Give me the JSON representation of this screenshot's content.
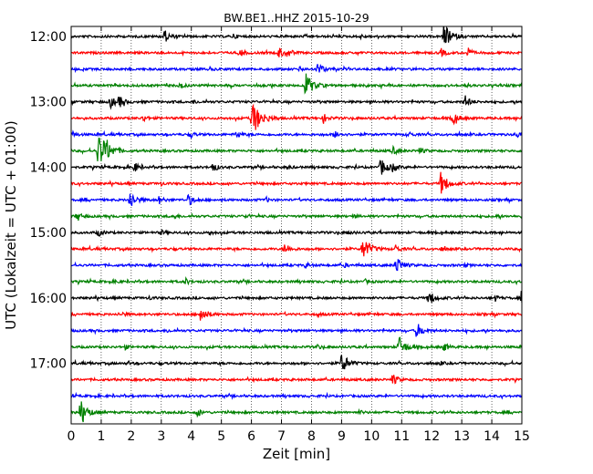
{
  "chart_data": {
    "type": "line",
    "title": "BW.BE1..HHZ 2015-10-29",
    "xlabel": "Zeit  [min]",
    "ylabel": "UTC (Lokalzeit = UTC + 01:00)",
    "xlim": [
      0,
      15
    ],
    "x_ticks": [
      "0",
      "1",
      "2",
      "3",
      "4",
      "5",
      "6",
      "7",
      "8",
      "9",
      "10",
      "11",
      "12",
      "13",
      "14",
      "15"
    ],
    "y_ticks": [
      {
        "label": "12:00",
        "row": 0
      },
      {
        "label": "13:00",
        "row": 4
      },
      {
        "label": "14:00",
        "row": 8
      },
      {
        "label": "15:00",
        "row": 12
      },
      {
        "label": "16:00",
        "row": 16
      },
      {
        "label": "17:00",
        "row": 20
      }
    ],
    "row_interval_min": 15,
    "row_colors": [
      "#000000",
      "#ff0000",
      "#0000ff",
      "#008000"
    ],
    "grid": "vertical-dotted",
    "series": [
      {
        "start": "12:00",
        "events": [
          [
            3.1,
            0.5
          ],
          [
            5.4,
            0.2
          ],
          [
            12.4,
            1.0
          ],
          [
            9.6,
            0.15
          ]
        ]
      },
      {
        "start": "12:15",
        "events": [
          [
            5.6,
            0.35
          ],
          [
            6.9,
            0.45
          ],
          [
            7.2,
            0.35
          ],
          [
            12.3,
            0.35
          ],
          [
            13.2,
            0.35
          ]
        ]
      },
      {
        "start": "12:30",
        "events": [
          [
            8.2,
            0.55
          ],
          [
            4.6,
            0.12
          ],
          [
            7.6,
            0.15
          ]
        ]
      },
      {
        "start": "12:45",
        "events": [
          [
            7.8,
            1.0
          ],
          [
            3.6,
            0.25
          ],
          [
            13.1,
            0.2
          ]
        ]
      },
      {
        "start": "13:00",
        "events": [
          [
            1.3,
            0.5
          ],
          [
            1.6,
            0.45
          ],
          [
            4.1,
            0.15
          ],
          [
            13.1,
            0.5
          ]
        ]
      },
      {
        "start": "13:15",
        "events": [
          [
            6.0,
            1.5
          ],
          [
            8.4,
            0.35
          ],
          [
            12.7,
            0.55
          ],
          [
            2.4,
            0.25
          ]
        ]
      },
      {
        "start": "13:30",
        "events": [
          [
            0.0,
            0.3
          ],
          [
            4.0,
            0.2
          ],
          [
            5.5,
            0.3
          ],
          [
            8.8,
            0.3
          ],
          [
            11.2,
            0.25
          ],
          [
            14.8,
            0.3
          ]
        ]
      },
      {
        "start": "13:45",
        "events": [
          [
            0.9,
            1.5
          ],
          [
            1.2,
            0.35
          ],
          [
            10.7,
            0.35
          ],
          [
            11.6,
            0.25
          ]
        ]
      },
      {
        "start": "14:00",
        "events": [
          [
            2.1,
            0.4
          ],
          [
            4.7,
            0.4
          ],
          [
            10.3,
            0.75
          ],
          [
            10.7,
            0.3
          ],
          [
            7.2,
            0.15
          ]
        ]
      },
      {
        "start": "14:15",
        "events": [
          [
            12.3,
            0.9
          ],
          [
            3.0,
            0.12
          ]
        ]
      },
      {
        "start": "14:30",
        "events": [
          [
            1.95,
            0.75
          ],
          [
            2.9,
            0.35
          ],
          [
            3.9,
            0.45
          ],
          [
            6.5,
            0.15
          ]
        ]
      },
      {
        "start": "14:45",
        "events": [
          [
            0.2,
            0.3
          ],
          [
            3.4,
            0.2
          ],
          [
            5.8,
            0.15
          ],
          [
            9.4,
            0.15
          ],
          [
            14.1,
            0.15
          ]
        ]
      },
      {
        "start": "15:00",
        "events": [
          [
            0.9,
            0.3
          ],
          [
            3.0,
            0.2
          ],
          [
            4.6,
            0.15
          ],
          [
            9.2,
            0.15
          ]
        ]
      },
      {
        "start": "15:15",
        "events": [
          [
            7.1,
            0.5
          ],
          [
            9.7,
            1.0
          ],
          [
            10.8,
            0.3
          ],
          [
            12.3,
            0.2
          ]
        ]
      },
      {
        "start": "15:30",
        "events": [
          [
            10.8,
            0.75
          ],
          [
            7.8,
            0.2
          ],
          [
            9.1,
            0.15
          ],
          [
            13.1,
            0.15
          ]
        ]
      },
      {
        "start": "15:45",
        "events": [
          [
            3.8,
            0.25
          ],
          [
            1.5,
            0.15
          ],
          [
            9.8,
            0.15
          ]
        ]
      },
      {
        "start": "16:00",
        "events": [
          [
            11.9,
            0.6
          ],
          [
            14.1,
            0.25
          ],
          [
            15.0,
            0.85
          ],
          [
            2.6,
            0.15
          ]
        ]
      },
      {
        "start": "16:15",
        "events": [
          [
            4.3,
            0.7
          ],
          [
            1.7,
            0.15
          ],
          [
            8.2,
            0.12
          ]
        ]
      },
      {
        "start": "16:30",
        "events": [
          [
            11.5,
            0.65
          ],
          [
            3.2,
            0.12
          ]
        ]
      },
      {
        "start": "16:45",
        "events": [
          [
            10.9,
            0.85
          ],
          [
            12.4,
            0.35
          ],
          [
            8.2,
            0.15
          ],
          [
            1.8,
            0.15
          ]
        ]
      },
      {
        "start": "17:00",
        "events": [
          [
            9.0,
            0.85
          ],
          [
            1.9,
            0.15
          ],
          [
            12.3,
            0.12
          ]
        ]
      },
      {
        "start": "17:15",
        "events": [
          [
            10.7,
            0.45
          ]
        ]
      },
      {
        "start": "17:30",
        "events": []
      },
      {
        "start": "17:45",
        "events": [
          [
            0.3,
            1.0
          ],
          [
            4.2,
            0.3
          ],
          [
            9.6,
            0.15
          ]
        ]
      }
    ]
  }
}
